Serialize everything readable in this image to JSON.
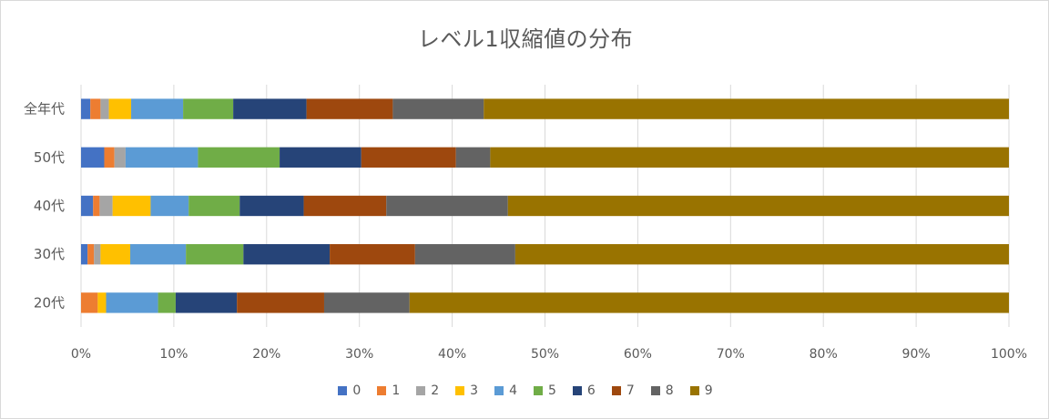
{
  "chart_data": {
    "type": "bar",
    "orientation": "horizontal",
    "stacked": "100%",
    "title": "レベル1収縮値の分布",
    "xlabel": "",
    "ylabel": "",
    "xlim": [
      0,
      100
    ],
    "x_ticks": [
      "0%",
      "10%",
      "20%",
      "30%",
      "40%",
      "50%",
      "60%",
      "70%",
      "80%",
      "90%",
      "100%"
    ],
    "grid": true,
    "legend_position": "bottom",
    "categories": [
      "全年代",
      "50代",
      "40代",
      "30代",
      "20代"
    ],
    "series": [
      {
        "name": "0",
        "color": "#4472c4",
        "values": [
          1.0,
          2.5,
          1.3,
          0.7,
          0.0
        ]
      },
      {
        "name": "1",
        "color": "#ed7d31",
        "values": [
          1.1,
          1.1,
          0.7,
          0.7,
          1.8
        ]
      },
      {
        "name": "2",
        "color": "#a5a5a5",
        "values": [
          0.9,
          1.2,
          1.4,
          0.7,
          0.0
        ]
      },
      {
        "name": "3",
        "color": "#ffc000",
        "values": [
          2.4,
          0.0,
          4.1,
          3.2,
          0.9
        ]
      },
      {
        "name": "4",
        "color": "#5b9bd5",
        "values": [
          5.6,
          7.8,
          4.1,
          6.0,
          5.6
        ]
      },
      {
        "name": "5",
        "color": "#70ad47",
        "values": [
          5.4,
          8.8,
          5.5,
          6.2,
          1.9
        ]
      },
      {
        "name": "6",
        "color": "#264478",
        "values": [
          7.9,
          8.8,
          6.9,
          9.3,
          6.6
        ]
      },
      {
        "name": "7",
        "color": "#9e480e",
        "values": [
          9.3,
          10.2,
          8.9,
          9.2,
          9.4
        ]
      },
      {
        "name": "8",
        "color": "#636363",
        "values": [
          9.8,
          3.7,
          13.1,
          10.8,
          9.2
        ]
      },
      {
        "name": "9",
        "color": "#997300",
        "values": [
          56.6,
          55.9,
          54.0,
          53.2,
          64.6
        ]
      }
    ]
  }
}
